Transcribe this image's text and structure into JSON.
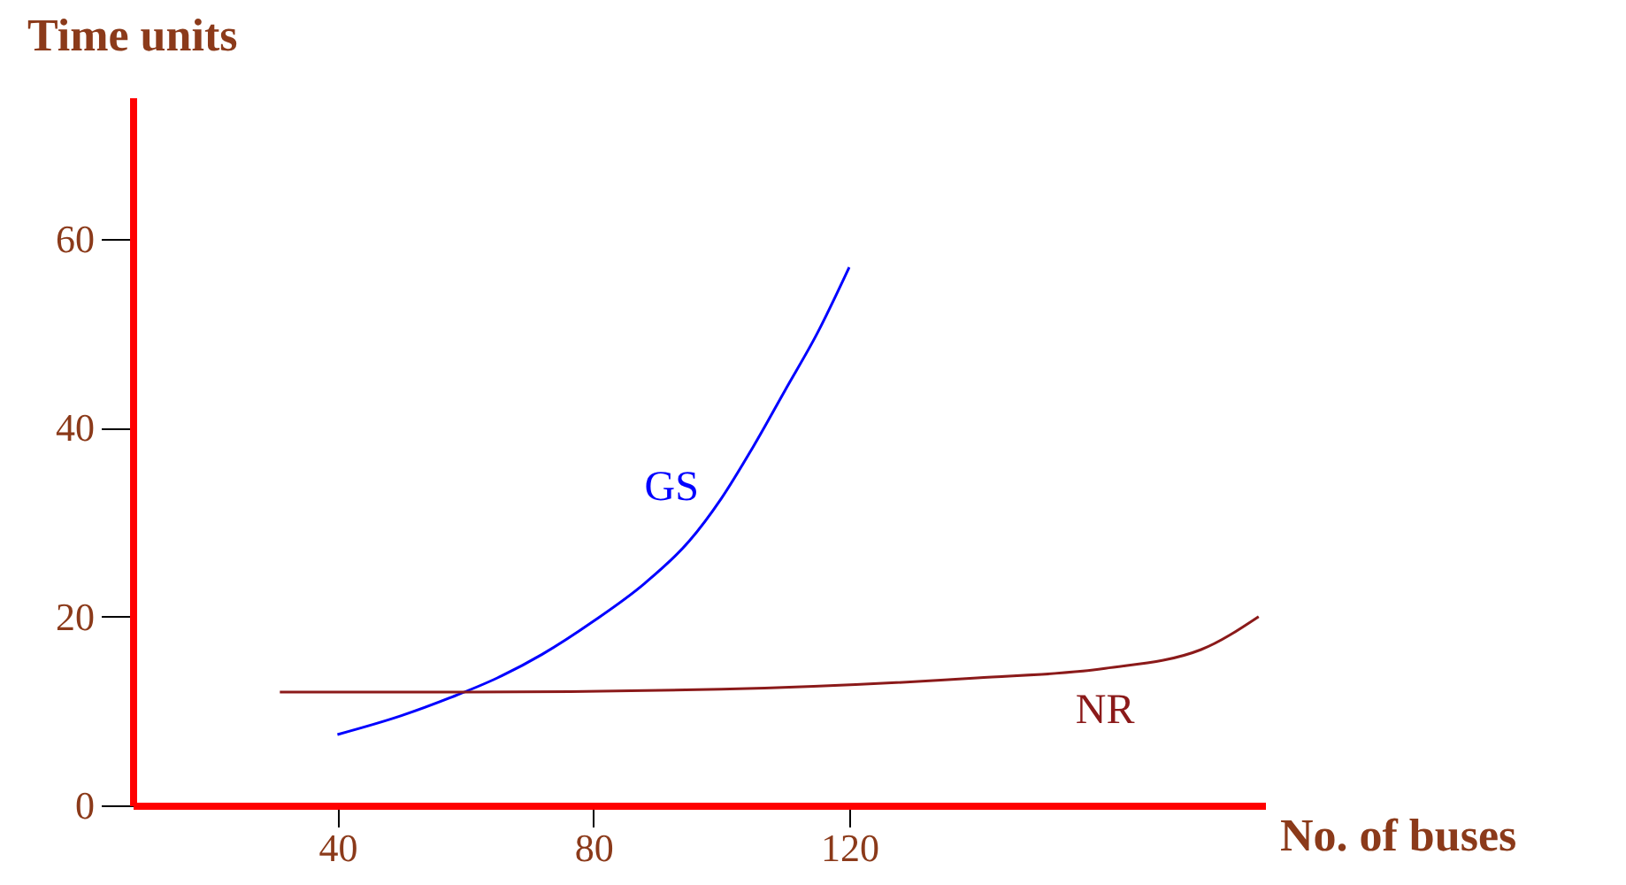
{
  "chart_data": {
    "type": "line",
    "xlabel": "No. of buses",
    "ylabel": "Time units",
    "xlim": [
      8,
      185
    ],
    "ylim": [
      0,
      75
    ],
    "xticks": [
      40,
      80,
      120
    ],
    "yticks": [
      0,
      20,
      40,
      60
    ],
    "grid": false,
    "legend": false,
    "marker": "none",
    "line_style": "solid",
    "series": [
      {
        "name": "GS",
        "color": "#0000ff",
        "x": [
          40,
          50,
          58,
          65,
          72,
          80,
          88,
          95,
          100,
          105,
          110,
          115,
          120
        ],
        "values": [
          7.5,
          9.5,
          11.5,
          13.5,
          16,
          19.5,
          23.5,
          28,
          32.5,
          38,
          44,
          50,
          57
        ]
      },
      {
        "name": "NR",
        "color": "#8b1a1a",
        "x": [
          31,
          60,
          100,
          140,
          160,
          175,
          184
        ],
        "values": [
          12,
          12,
          12.3,
          13.5,
          14.5,
          16.5,
          20
        ]
      }
    ]
  }
}
